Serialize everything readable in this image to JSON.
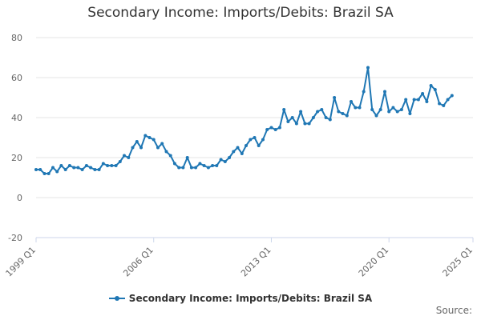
{
  "colors": {
    "series": "#1f77b4",
    "grid": "#e6e6e6",
    "axis": "#ccd6eb"
  },
  "source_label": "Source:",
  "chart_data": {
    "type": "line",
    "title": "Secondary Income: Imports/Debits: Brazil SA",
    "xlabel": "",
    "ylabel": "",
    "ylim": [
      -20,
      80
    ],
    "y_ticks": [
      -20,
      0,
      20,
      40,
      60,
      80
    ],
    "x_ticks": [
      "1999 Q1",
      "2006 Q1",
      "2013 Q1",
      "2020 Q1",
      "2025 Q1"
    ],
    "x_start": "1999 Q1",
    "grid": true,
    "legend_position": "bottom-center",
    "series": [
      {
        "name": "Secondary Income: Imports/Debits: Brazil SA",
        "values": [
          14,
          14,
          12,
          12,
          15,
          13,
          16,
          14,
          16,
          15,
          15,
          14,
          16,
          15,
          14,
          14,
          17,
          16,
          16,
          16,
          18,
          21,
          20,
          25,
          28,
          25,
          31,
          30,
          29,
          25,
          27,
          23,
          21,
          17,
          15,
          15,
          20,
          15,
          15,
          17,
          16,
          15,
          16,
          16,
          19,
          18,
          20,
          23,
          25,
          22,
          26,
          29,
          30,
          26,
          29,
          34,
          35,
          34,
          35,
          44,
          38,
          40,
          37,
          43,
          37,
          37,
          40,
          43,
          44,
          40,
          39,
          50,
          43,
          42,
          41,
          48,
          45,
          45,
          53,
          65,
          44,
          41,
          44,
          53,
          43,
          45,
          43,
          44,
          49,
          42,
          49,
          49,
          52,
          48,
          56,
          54,
          47,
          46,
          49,
          51
        ]
      }
    ]
  }
}
